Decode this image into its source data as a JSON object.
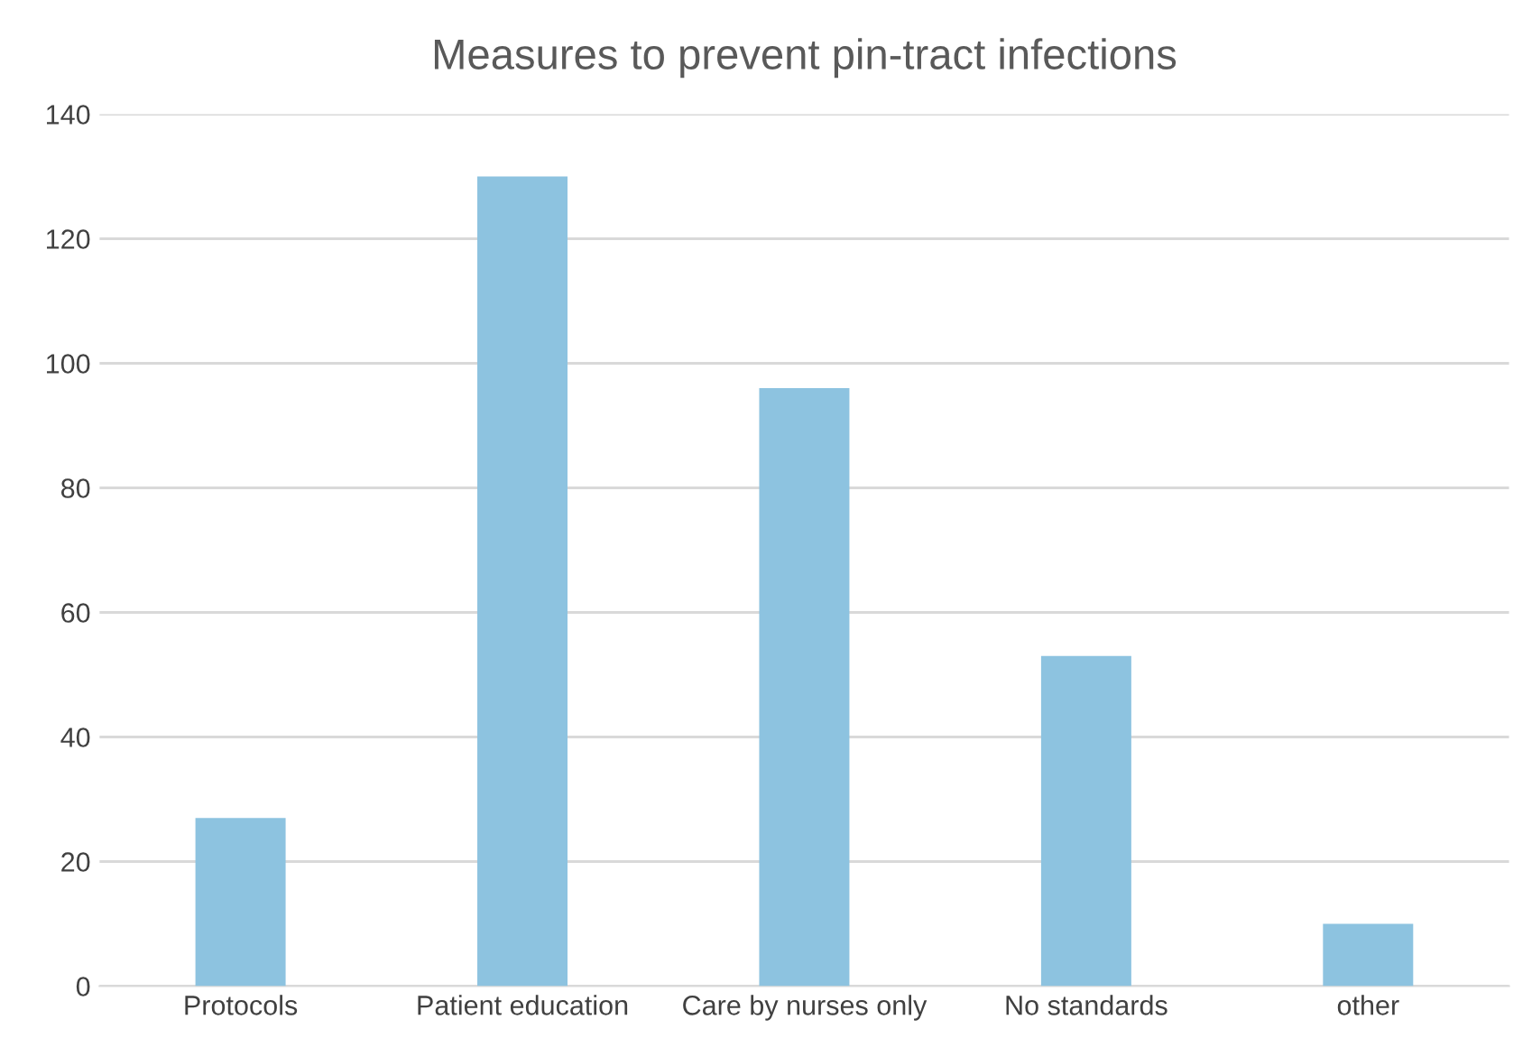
{
  "chart_data": {
    "type": "bar",
    "title": "Measures to prevent pin-tract infections",
    "categories": [
      "Protocols",
      "Patient education",
      "Care by nurses only",
      "No standards",
      "other"
    ],
    "values": [
      27,
      130,
      96,
      53,
      10
    ],
    "color": "#8dc3e0",
    "ylim": [
      0,
      140
    ],
    "yticks": [
      0,
      20,
      40,
      60,
      80,
      100,
      120,
      140
    ],
    "grid": "y"
  }
}
